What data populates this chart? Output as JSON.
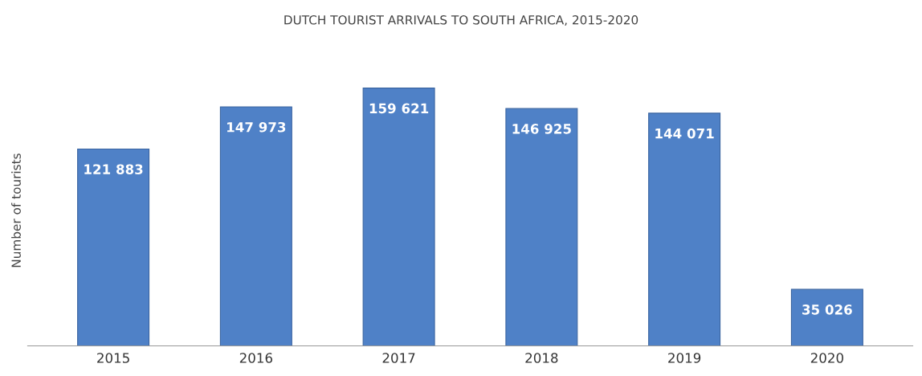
{
  "chart_data": {
    "type": "bar",
    "title": "DUTCH TOURIST ARRIVALS TO SOUTH AFRICA, 2015-2020",
    "ylabel": "Number of tourists",
    "categories": [
      "2015",
      "2016",
      "2017",
      "2018",
      "2019",
      "2020"
    ],
    "values": [
      121883,
      147973,
      159621,
      146925,
      144071,
      35026
    ],
    "value_labels": [
      "121 883",
      "147 973",
      "159 621",
      "146 925",
      "144 071",
      "35 026"
    ],
    "color": "#4f81c7",
    "grid": false,
    "legend": false
  }
}
